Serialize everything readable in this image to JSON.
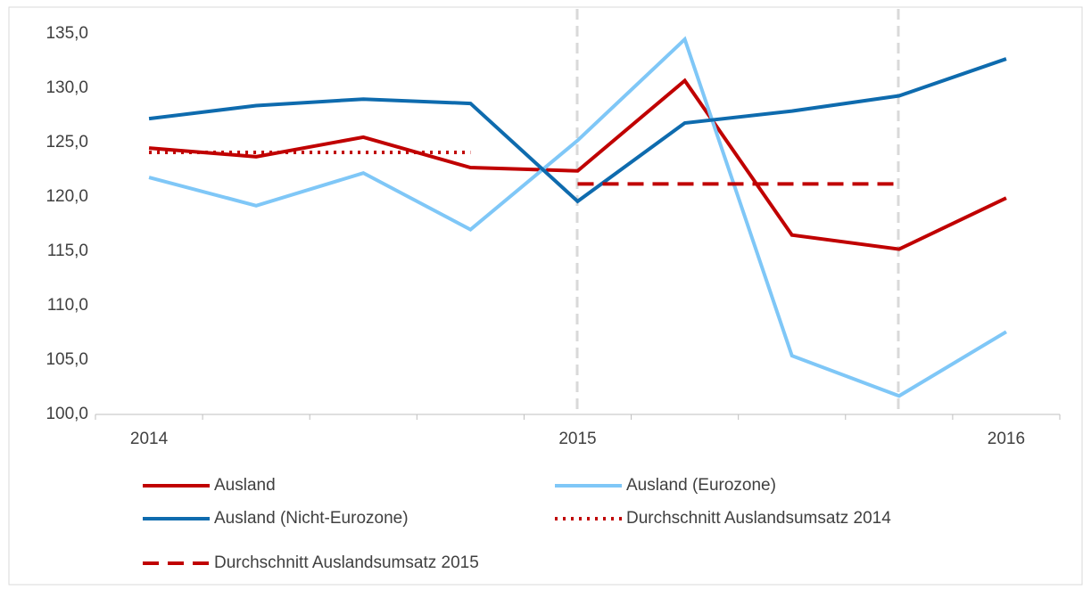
{
  "chart_data": {
    "type": "line",
    "categories": [
      "2014",
      null,
      null,
      null,
      "2015",
      null,
      null,
      null,
      "2016"
    ],
    "series": [
      {
        "name": "Ausland",
        "color": "#c00000",
        "style": "solid",
        "values": [
          124.5,
          123.7,
          125.5,
          122.7,
          122.4,
          130.7,
          116.5,
          115.2,
          119.9
        ]
      },
      {
        "name": "Ausland (Eurozone)",
        "color": "#7fc7f7",
        "style": "solid",
        "values": [
          121.8,
          119.2,
          122.2,
          117.0,
          125.2,
          134.5,
          105.4,
          101.7,
          107.6
        ]
      },
      {
        "name": "Ausland (Nicht-Eurozone)",
        "color": "#0e6bae",
        "style": "solid",
        "values": [
          127.2,
          128.4,
          129.0,
          128.6,
          119.6,
          126.8,
          127.9,
          129.3,
          132.7
        ]
      },
      {
        "name": "Durchschnitt Auslandsumsatz 2014",
        "color": "#c00000",
        "style": "dotted",
        "values": [
          124.1,
          124.1,
          124.1,
          124.1,
          null,
          null,
          null,
          null,
          null
        ]
      },
      {
        "name": "Durchschnitt Auslandsumsatz 2015",
        "color": "#c00000",
        "style": "dashed",
        "values": [
          null,
          null,
          null,
          null,
          121.2,
          121.2,
          121.2,
          121.2,
          null
        ]
      }
    ],
    "ylim": [
      100,
      135
    ],
    "yticks": [
      {
        "value": 100,
        "label": "100,0"
      },
      {
        "value": 105,
        "label": "105,0"
      },
      {
        "value": 110,
        "label": "110,0"
      },
      {
        "value": 115,
        "label": "115,0"
      },
      {
        "value": 120,
        "label": "120,0"
      },
      {
        "value": 125,
        "label": "125,0"
      },
      {
        "value": 130,
        "label": "130,0"
      },
      {
        "value": 135,
        "label": "135,0"
      }
    ],
    "grid": false,
    "legend": "bottom"
  }
}
